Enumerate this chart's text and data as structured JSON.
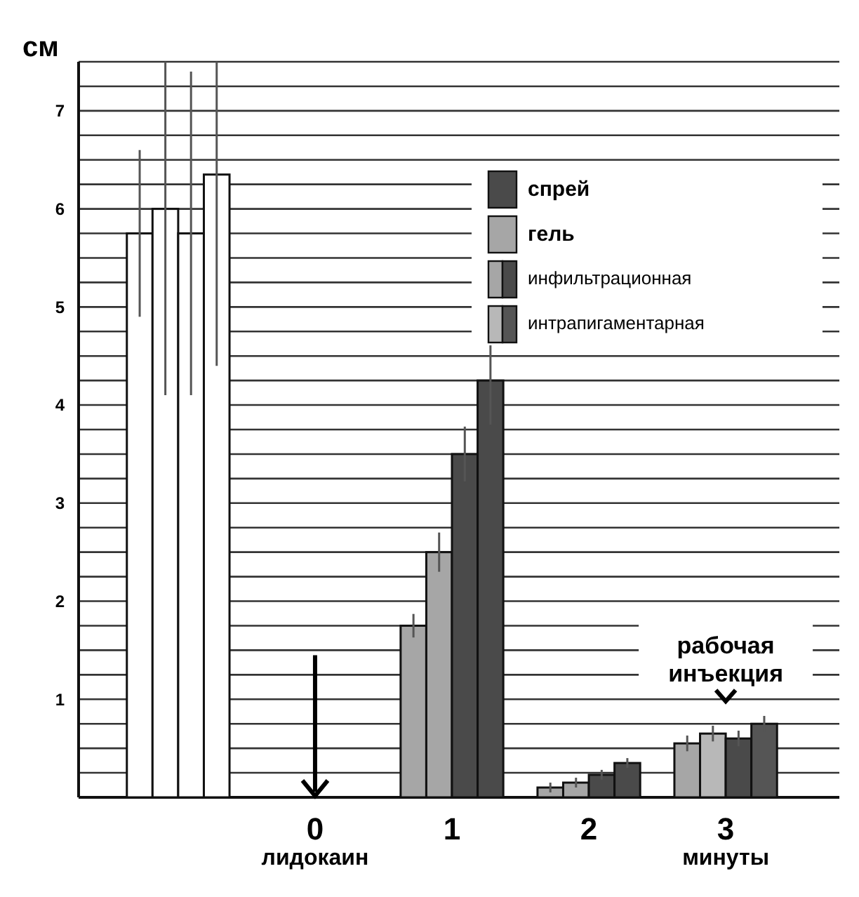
{
  "chart_data": {
    "type": "bar",
    "ylabel": "см",
    "xlabel": "минуты",
    "categories": [
      null,
      "0",
      "1",
      "2",
      "3"
    ],
    "series": [
      {
        "colors": [
          "#ffffff",
          null,
          "#a6a6a6",
          "#a6a6a6",
          "#a6a6a6"
        ],
        "values": [
          5.75,
          null,
          1.75,
          0.1,
          0.55
        ],
        "errors": [
          [
            4.9,
            6.6
          ],
          null,
          0.12,
          0.05,
          0.08
        ]
      },
      {
        "colors": [
          "#ffffff",
          null,
          "#a6a6a6",
          "#a6a6a6",
          "#b8b8b8"
        ],
        "values": [
          6.0,
          null,
          2.5,
          0.15,
          0.65
        ],
        "errors": [
          [
            4.1,
            7.5
          ],
          null,
          0.2,
          0.05,
          0.08
        ]
      },
      {
        "colors": [
          "#ffffff",
          null,
          "#4a4a4a",
          "#4a4a4a",
          "#4a4a4a"
        ],
        "values": [
          5.75,
          null,
          3.5,
          0.23,
          0.6
        ],
        "errors": [
          [
            4.1,
            7.4
          ],
          null,
          0.28,
          0.05,
          0.08
        ]
      },
      {
        "colors": [
          "#ffffff",
          null,
          "#4a4a4a",
          "#4a4a4a",
          "#555555"
        ],
        "values": [
          6.35,
          null,
          4.25,
          0.35,
          0.75
        ],
        "errors": [
          [
            4.4,
            7.5
          ],
          null,
          0.45,
          0.05,
          0.08
        ]
      }
    ],
    "ylim": [
      0,
      7.5
    ],
    "yticks": [
      {
        "value": 0.25,
        "label": null
      },
      {
        "value": 0.5,
        "label": null
      },
      {
        "value": 0.75,
        "label": null
      },
      1,
      {
        "value": 1.25,
        "label": null
      },
      {
        "value": 1.5,
        "label": null
      },
      {
        "value": 1.75,
        "label": null
      },
      2,
      {
        "value": 2.25,
        "label": null
      },
      {
        "value": 2.5,
        "label": null
      },
      {
        "value": 2.75,
        "label": null
      },
      3,
      {
        "value": 3.25,
        "label": null
      },
      {
        "value": 3.5,
        "label": null
      },
      {
        "value": 3.75,
        "label": null
      },
      4,
      {
        "value": 4.25,
        "label": null
      },
      {
        "value": 4.5,
        "label": null
      },
      {
        "value": 4.75,
        "label": null
      },
      5,
      {
        "value": 5.25,
        "label": null
      },
      {
        "value": 5.5,
        "label": null
      },
      {
        "value": 5.75,
        "label": null
      },
      6,
      {
        "value": 6.25,
        "label": null
      },
      {
        "value": 6.5,
        "label": null
      },
      {
        "value": 6.75,
        "label": null
      },
      7,
      {
        "value": 7.25,
        "label": null
      },
      {
        "value": 7.5,
        "label": null
      }
    ],
    "grid": "y",
    "annotations": [
      "спрей",
      "гель",
      "инфильтрационная",
      "интрапигаментарная",
      "лидокаин",
      "рабочая инъекция"
    ]
  }
}
